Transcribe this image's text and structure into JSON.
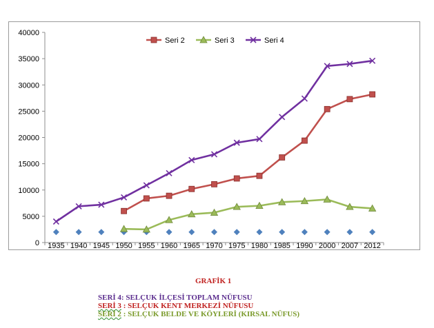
{
  "chart_data": {
    "type": "line",
    "x": [
      "1935",
      "1940",
      "1945",
      "1950",
      "1955",
      "1960",
      "1965",
      "1970",
      "1975",
      "1980",
      "1985",
      "1990",
      "2000",
      "2007",
      "2012"
    ],
    "ylim": [
      0,
      40000
    ],
    "yticks": [
      0,
      5000,
      10000,
      15000,
      20000,
      25000,
      30000,
      35000,
      40000
    ],
    "grid": false,
    "legend_position": "top",
    "series": [
      {
        "name": "",
        "color": "#4f81bd",
        "marker": "diamond",
        "line": false,
        "values": [
          2000,
          2000,
          2000,
          2000,
          2000,
          2000,
          2000,
          2000,
          2000,
          2000,
          2000,
          2000,
          2000,
          2000,
          2000
        ]
      },
      {
        "name": "Seri 2",
        "color": "#c0504d",
        "marker": "square",
        "line": true,
        "values": [
          null,
          null,
          null,
          6000,
          8400,
          8900,
          10200,
          11100,
          12200,
          12700,
          16200,
          19400,
          25400,
          27300,
          28200
        ]
      },
      {
        "name": "Seri 3",
        "color": "#9bbb59",
        "marker": "triangle",
        "line": true,
        "values": [
          null,
          null,
          null,
          2600,
          2500,
          4300,
          5400,
          5700,
          6800,
          7000,
          7700,
          7900,
          8200,
          6800,
          6500
        ]
      },
      {
        "name": "Seri 4",
        "color": "#7030a0",
        "marker": "x",
        "line": true,
        "values": [
          4000,
          6900,
          7200,
          8600,
          10900,
          13200,
          15700,
          16800,
          19000,
          19700,
          23900,
          27400,
          33600,
          34000,
          34600
        ]
      }
    ]
  },
  "caption": {
    "title": "GRAFİK 1",
    "line1": "SERİ 4:  SELÇUK İLÇESİ TOPLAM NÜFUSU",
    "line2_prefix": "SERİ 3",
    "line2_rest": " : SELÇUK KENT MERKEZİ  NÜFUSU",
    "line3_prefix": "SERİ 2",
    "line3_rest": " : SELÇUK BELDE VE KÖYLERİ (KIRSAL NÜFUS)"
  }
}
